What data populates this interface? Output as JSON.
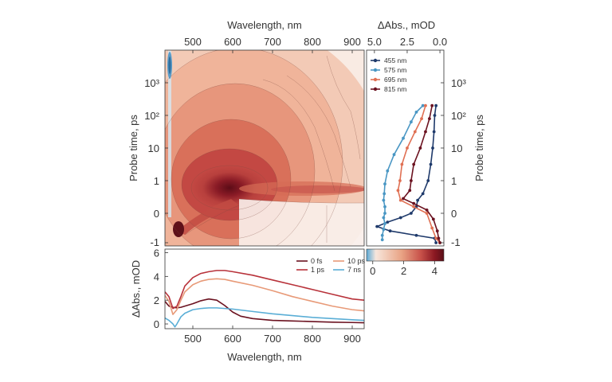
{
  "chart_data": [
    {
      "type": "heatmap",
      "name": "transient-absorption-map",
      "xlabel": "Wavelength, nm",
      "ylabel": "Probe time, ps",
      "xlim": [
        430,
        930
      ],
      "x_ticks": [
        "500",
        "600",
        "700",
        "800",
        "900"
      ],
      "x_tick_values": [
        500,
        600,
        700,
        800,
        900
      ],
      "y_ticks": [
        "-1",
        "0",
        "1",
        "10",
        "10²",
        "10³"
      ],
      "colorbar": {
        "ticks": [
          "0",
          "2",
          "4"
        ],
        "tick_values": [
          0,
          2,
          4
        ],
        "range": [
          -0.4,
          4.6
        ],
        "colors": [
          "#5aa9d6",
          "#f7e6dc",
          "#e9a485",
          "#c8524a",
          "#8b1822",
          "#5a0f18"
        ],
        "unit": "mOD"
      }
    },
    {
      "type": "line",
      "name": "kinetics",
      "xlabel": "ΔAbs., mOD",
      "ylabel": "Probe time, ps",
      "x_ticks": [
        "5.0",
        "2.5",
        "0.0"
      ],
      "x_tick_values": [
        5.0,
        2.5,
        0.0
      ],
      "xlim": [
        5.6,
        -0.3
      ],
      "y_ticks": [
        "-1",
        "0",
        "1",
        "10",
        "10²",
        "10³"
      ],
      "series": [
        {
          "name": "455 nm",
          "color": "#1f3a6b",
          "points": [
            [
              0.3,
              -1.0
            ],
            [
              0.4,
              -0.85
            ],
            [
              1.8,
              -0.75
            ],
            [
              3.8,
              -0.6
            ],
            [
              4.8,
              -0.45
            ],
            [
              4.0,
              -0.3
            ],
            [
              3.0,
              -0.15
            ],
            [
              2.2,
              0.0
            ],
            [
              1.8,
              0.2
            ],
            [
              1.7,
              0.4
            ],
            [
              1.3,
              0.6
            ],
            [
              0.9,
              1.0
            ],
            [
              0.7,
              1.5
            ],
            [
              0.55,
              2.0
            ],
            [
              0.45,
              2.5
            ],
            [
              0.4,
              3.0
            ],
            [
              0.3,
              3.3
            ]
          ]
        },
        {
          "name": "575 nm",
          "color": "#4a97c4",
          "points": [
            [
              4.4,
              -0.9
            ],
            [
              4.4,
              -0.75
            ],
            [
              4.3,
              -0.55
            ],
            [
              4.2,
              -0.35
            ],
            [
              4.3,
              -0.15
            ],
            [
              4.2,
              0.0
            ],
            [
              4.2,
              0.2
            ],
            [
              4.3,
              0.4
            ],
            [
              4.25,
              0.6
            ],
            [
              4.2,
              0.9
            ],
            [
              4.0,
              1.3
            ],
            [
              3.5,
              1.8
            ],
            [
              2.8,
              2.3
            ],
            [
              2.2,
              2.8
            ],
            [
              1.8,
              3.1
            ],
            [
              1.3,
              3.3
            ]
          ]
        },
        {
          "name": "695 nm",
          "color": "#e07053",
          "points": [
            [
              0.0,
              -1.0
            ],
            [
              0.3,
              -0.85
            ],
            [
              0.6,
              -0.5
            ],
            [
              1.0,
              0.0
            ],
            [
              2.0,
              0.2
            ],
            [
              3.0,
              0.4
            ],
            [
              3.2,
              0.7
            ],
            [
              3.05,
              1.0
            ],
            [
              2.9,
              1.5
            ],
            [
              2.5,
              2.0
            ],
            [
              1.9,
              2.5
            ],
            [
              1.4,
              2.9
            ],
            [
              1.1,
              3.3
            ]
          ]
        },
        {
          "name": "815 nm",
          "color": "#6b1220",
          "points": [
            [
              0.0,
              -1.0
            ],
            [
              0.1,
              -0.85
            ],
            [
              0.2,
              -0.6
            ],
            [
              0.5,
              -0.2
            ],
            [
              1.0,
              0.1
            ],
            [
              2.0,
              0.3
            ],
            [
              2.8,
              0.45
            ],
            [
              2.3,
              0.7
            ],
            [
              2.2,
              1.0
            ],
            [
              2.0,
              1.5
            ],
            [
              1.5,
              2.0
            ],
            [
              1.1,
              2.5
            ],
            [
              0.8,
              2.9
            ],
            [
              0.6,
              3.3
            ]
          ]
        }
      ]
    },
    {
      "type": "line",
      "name": "spectra",
      "xlabel": "Wavelength, nm",
      "ylabel": "ΔAbs., mOD",
      "xlim": [
        430,
        930
      ],
      "ylim": [
        -0.4,
        6.3
      ],
      "x_ticks": [
        "500",
        "600",
        "700",
        "800",
        "900"
      ],
      "x_tick_values": [
        500,
        600,
        700,
        800,
        900
      ],
      "y_ticks": [
        "0",
        "2",
        "4",
        "6"
      ],
      "y_tick_values": [
        0,
        2,
        4,
        6
      ],
      "series": [
        {
          "name": "0 fs",
          "color": "#6b1220",
          "x": [
            430,
            440,
            450,
            460,
            470,
            480,
            500,
            520,
            540,
            560,
            580,
            600,
            620,
            650,
            700,
            750,
            800,
            850,
            900,
            930
          ],
          "y": [
            1.9,
            1.5,
            1.4,
            1.35,
            1.4,
            1.5,
            1.7,
            1.95,
            2.1,
            2.0,
            1.55,
            1.0,
            0.65,
            0.45,
            0.3,
            0.25,
            0.2,
            0.15,
            0.12,
            0.1
          ]
        },
        {
          "name": "1 ps",
          "color": "#b8323a",
          "x": [
            430,
            440,
            450,
            460,
            470,
            480,
            500,
            520,
            540,
            560,
            580,
            600,
            650,
            700,
            750,
            800,
            850,
            900,
            930
          ],
          "y": [
            2.7,
            2.3,
            1.3,
            1.5,
            2.3,
            3.2,
            3.9,
            4.25,
            4.4,
            4.5,
            4.5,
            4.4,
            4.1,
            3.7,
            3.3,
            2.9,
            2.5,
            2.1,
            2.0
          ]
        },
        {
          "name": "10 ps",
          "color": "#e89a78",
          "x": [
            430,
            440,
            450,
            460,
            470,
            480,
            500,
            520,
            540,
            560,
            580,
            600,
            650,
            700,
            750,
            800,
            850,
            900,
            930
          ],
          "y": [
            2.4,
            1.9,
            0.8,
            1.2,
            2.0,
            2.7,
            3.3,
            3.6,
            3.75,
            3.8,
            3.75,
            3.6,
            3.25,
            2.8,
            2.3,
            1.9,
            1.5,
            1.2,
            1.1
          ]
        },
        {
          "name": "7 ns",
          "color": "#5aaed6",
          "x": [
            430,
            440,
            450,
            455,
            460,
            470,
            480,
            500,
            520,
            540,
            560,
            600,
            650,
            700,
            750,
            800,
            850,
            900,
            930
          ],
          "y": [
            0.5,
            0.3,
            0.0,
            -0.25,
            0.0,
            0.6,
            0.9,
            1.2,
            1.3,
            1.35,
            1.35,
            1.25,
            1.05,
            0.85,
            0.7,
            0.55,
            0.45,
            0.35,
            0.3
          ]
        }
      ]
    }
  ]
}
